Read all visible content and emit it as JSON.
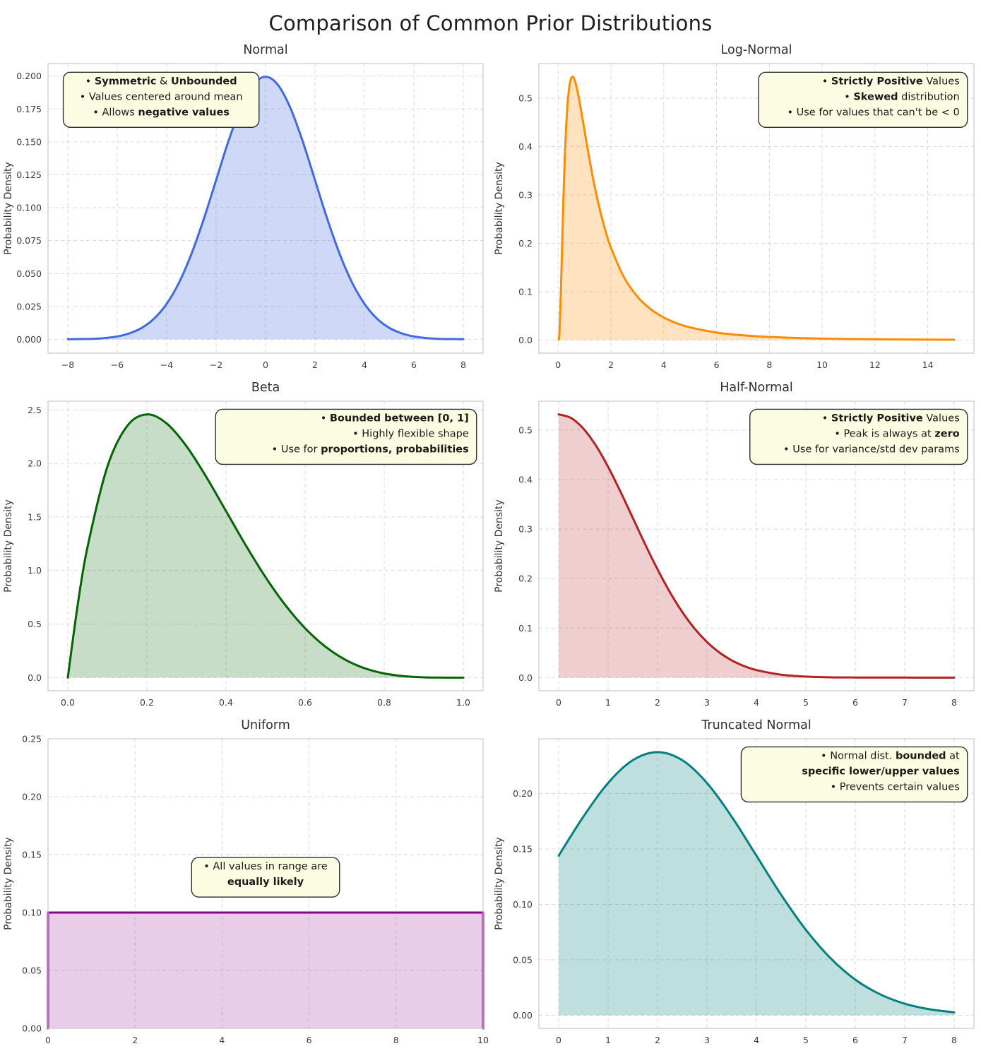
{
  "page_title": "Comparison of Common Prior Distributions",
  "ylabel": "Probability Density",
  "annotation_box_color": "#fcfce3",
  "chart_data": [
    {
      "id": "normal",
      "type": "area",
      "title": "Normal",
      "ylabel": "Probability Density",
      "line_color": "#4169E1",
      "fill_color": "rgba(65,105,225,0.25)",
      "smooth": true,
      "grid": true,
      "xlim": [
        -8.8,
        8.8
      ],
      "ylim": [
        -0.0105,
        0.2095
      ],
      "x_ticks": [
        {
          "v": -8,
          "t": "−8"
        },
        {
          "v": -6,
          "t": "−6"
        },
        {
          "v": -4,
          "t": "−4"
        },
        {
          "v": -2,
          "t": "−2"
        },
        {
          "v": 0,
          "t": "0"
        },
        {
          "v": 2,
          "t": "2"
        },
        {
          "v": 4,
          "t": "4"
        },
        {
          "v": 6,
          "t": "6"
        },
        {
          "v": 8,
          "t": "8"
        }
      ],
      "y_ticks": [
        {
          "v": 0,
          "t": "0.000"
        },
        {
          "v": 0.025,
          "t": "0.025"
        },
        {
          "v": 0.05,
          "t": "0.050"
        },
        {
          "v": 0.075,
          "t": "0.075"
        },
        {
          "v": 0.1,
          "t": "0.100"
        },
        {
          "v": 0.125,
          "t": "0.125"
        },
        {
          "v": 0.15,
          "t": "0.150"
        },
        {
          "v": 0.175,
          "t": "0.175"
        },
        {
          "v": 0.2,
          "t": "0.200"
        }
      ],
      "x": [
        -8,
        -7.5,
        -7,
        -6.5,
        -6,
        -5.5,
        -5,
        -4.5,
        -4,
        -3.5,
        -3,
        -2.5,
        -2,
        -1.5,
        -1,
        -0.5,
        0,
        0.5,
        1,
        1.5,
        2,
        2.5,
        3,
        3.5,
        4,
        4.5,
        5,
        5.5,
        6,
        6.5,
        7,
        7.5,
        8
      ],
      "y": [
        0.0001,
        0.0002,
        0.0004,
        0.001,
        0.0022,
        0.0046,
        0.0088,
        0.0159,
        0.027,
        0.0431,
        0.0648,
        0.0913,
        0.121,
        0.1506,
        0.176,
        0.1933,
        0.1995,
        0.1933,
        0.176,
        0.1506,
        0.121,
        0.0913,
        0.0648,
        0.0431,
        0.027,
        0.0159,
        0.0088,
        0.0046,
        0.0022,
        0.001,
        0.0004,
        0.0002,
        0.0001
      ],
      "annotation": {
        "align": "center",
        "pos": {
          "side": "left",
          "x": 0.035,
          "y": 0.03,
          "w": 0.45
        },
        "lines": [
          [
            {
              "t": "• ",
              "b": false
            },
            {
              "t": "Symmetric",
              "b": true
            },
            {
              "t": " & ",
              "b": false
            },
            {
              "t": "Unbounded",
              "b": true
            }
          ],
          [
            {
              "t": "• Values centered around mean",
              "b": false
            }
          ],
          [
            {
              "t": "• Allows ",
              "b": false
            },
            {
              "t": "negative values",
              "b": true
            }
          ]
        ]
      }
    },
    {
      "id": "log-normal",
      "type": "area",
      "title": "Log-Normal",
      "ylabel": "Probability Density",
      "line_color": "#FF8C00",
      "fill_color": "rgba(255,140,0,0.25)",
      "smooth": true,
      "grid": true,
      "xlim": [
        -0.73,
        15.75
      ],
      "ylim": [
        -0.0272,
        0.5715
      ],
      "x_ticks": [
        {
          "v": 0,
          "t": "0"
        },
        {
          "v": 2,
          "t": "2"
        },
        {
          "v": 4,
          "t": "4"
        },
        {
          "v": 6,
          "t": "6"
        },
        {
          "v": 8,
          "t": "8"
        },
        {
          "v": 10,
          "t": "10"
        },
        {
          "v": 12,
          "t": "12"
        },
        {
          "v": 14,
          "t": "14"
        }
      ],
      "y_ticks": [
        {
          "v": 0,
          "t": "0.0"
        },
        {
          "v": 0.1,
          "t": "0.1"
        },
        {
          "v": 0.2,
          "t": "0.2"
        },
        {
          "v": 0.3,
          "t": "0.3"
        },
        {
          "v": 0.4,
          "t": "0.4"
        },
        {
          "v": 0.5,
          "t": "0.5"
        }
      ],
      "x": [
        0.02,
        0.05,
        0.1,
        0.15,
        0.2,
        0.25,
        0.3,
        0.35,
        0.4,
        0.45,
        0.5,
        0.55,
        0.6,
        0.7,
        0.8,
        0.9,
        1,
        1.2,
        1.4,
        1.6,
        1.8,
        2,
        2.5,
        3,
        3.5,
        4,
        4.5,
        5,
        6,
        7,
        8,
        9,
        10,
        11,
        12,
        13,
        14,
        15
      ],
      "y": [
        0.0007,
        0.0163,
        0.0929,
        0.1956,
        0.2941,
        0.3752,
        0.4377,
        0.483,
        0.5136,
        0.5324,
        0.5419,
        0.5442,
        0.5409,
        0.523,
        0.4961,
        0.465,
        0.4325,
        0.3693,
        0.313,
        0.2649,
        0.2245,
        0.1908,
        0.1292,
        0.0898,
        0.0639,
        0.0465,
        0.0345,
        0.026,
        0.0155,
        0.0096,
        0.0063,
        0.0042,
        0.0029,
        0.002,
        0.0015,
        0.0011,
        0.0008,
        0.0006
      ],
      "annotation": {
        "align": "right",
        "pos": {
          "side": "right",
          "x": 0.985,
          "y": 0.03,
          "w": 0.48
        },
        "lines": [
          [
            {
              "t": "• ",
              "b": false
            },
            {
              "t": "Strictly Positive",
              "b": true
            },
            {
              "t": " Values",
              "b": false
            }
          ],
          [
            {
              "t": "• ",
              "b": false
            },
            {
              "t": "Skewed",
              "b": true
            },
            {
              "t": " distribution",
              "b": false
            }
          ],
          [
            {
              "t": "• Use for values that can't be < 0",
              "b": false
            }
          ]
        ]
      }
    },
    {
      "id": "beta",
      "type": "area",
      "title": "Beta",
      "ylabel": "Probability Density",
      "line_color": "#006400",
      "fill_color": "rgba(0,100,0,0.22)",
      "smooth": true,
      "grid": true,
      "xlim": [
        -0.05,
        1.05
      ],
      "ylim": [
        -0.123,
        2.581
      ],
      "x_ticks": [
        {
          "v": 0,
          "t": "0.0"
        },
        {
          "v": 0.2,
          "t": "0.2"
        },
        {
          "v": 0.4,
          "t": "0.4"
        },
        {
          "v": 0.6,
          "t": "0.6"
        },
        {
          "v": 0.8,
          "t": "0.8"
        },
        {
          "v": 1,
          "t": "1.0"
        }
      ],
      "y_ticks": [
        {
          "v": 0,
          "t": "0.0"
        },
        {
          "v": 0.5,
          "t": "0.5"
        },
        {
          "v": 1,
          "t": "1.0"
        },
        {
          "v": 1.5,
          "t": "1.5"
        },
        {
          "v": 2,
          "t": "2.0"
        },
        {
          "v": 2.5,
          "t": "2.5"
        }
      ],
      "x": [
        0,
        0.025,
        0.05,
        0.1,
        0.15,
        0.2,
        0.25,
        0.3,
        0.35,
        0.4,
        0.45,
        0.5,
        0.55,
        0.6,
        0.65,
        0.7,
        0.75,
        0.8,
        0.85,
        0.9,
        0.95,
        1
      ],
      "y": [
        0,
        0.6778,
        1.2218,
        1.9683,
        2.3491,
        2.4576,
        2.373,
        2.1609,
        1.8744,
        1.5552,
        1.2353,
        0.9375,
        0.6768,
        0.4608,
        0.2928,
        0.1701,
        0.0879,
        0.0384,
        0.0129,
        0.0027,
        0.0002,
        0
      ],
      "annotation": {
        "align": "right",
        "pos": {
          "side": "right",
          "x": 0.985,
          "y": 0.028,
          "w": 0.6
        },
        "lines": [
          [
            {
              "t": "• ",
              "b": false
            },
            {
              "t": "Bounded between [0, 1]",
              "b": true
            }
          ],
          [
            {
              "t": "• Highly flexible shape",
              "b": false
            }
          ],
          [
            {
              "t": "• Use for ",
              "b": false
            },
            {
              "t": "proportions,  probabilities",
              "b": true
            }
          ]
        ]
      }
    },
    {
      "id": "half-normal",
      "type": "area",
      "title": "Half-Normal",
      "ylabel": "Probability Density",
      "line_color": "#B22222",
      "fill_color": "rgba(178,34,34,0.22)",
      "smooth": true,
      "grid": true,
      "xlim": [
        -0.4,
        8.4
      ],
      "ylim": [
        -0.0266,
        0.5585
      ],
      "x_ticks": [
        {
          "v": 0,
          "t": "0"
        },
        {
          "v": 1,
          "t": "1"
        },
        {
          "v": 2,
          "t": "2"
        },
        {
          "v": 3,
          "t": "3"
        },
        {
          "v": 4,
          "t": "4"
        },
        {
          "v": 5,
          "t": "5"
        },
        {
          "v": 6,
          "t": "6"
        },
        {
          "v": 7,
          "t": "7"
        },
        {
          "v": 8,
          "t": "8"
        }
      ],
      "y_ticks": [
        {
          "v": 0,
          "t": "0.0"
        },
        {
          "v": 0.1,
          "t": "0.1"
        },
        {
          "v": 0.2,
          "t": "0.2"
        },
        {
          "v": 0.3,
          "t": "0.3"
        },
        {
          "v": 0.4,
          "t": "0.4"
        },
        {
          "v": 0.5,
          "t": "0.5"
        }
      ],
      "x": [
        0,
        0.25,
        0.5,
        0.75,
        1,
        1.25,
        1.5,
        1.75,
        2,
        2.25,
        2.5,
        2.75,
        3,
        3.25,
        3.5,
        3.75,
        4,
        4.5,
        5,
        5.5,
        6,
        6.5,
        7,
        7.5,
        8
      ],
      "y": [
        0.5319,
        0.5246,
        0.5031,
        0.4694,
        0.4259,
        0.3758,
        0.3226,
        0.2693,
        0.2187,
        0.1727,
        0.1327,
        0.0991,
        0.072,
        0.0508,
        0.0349,
        0.0234,
        0.0152,
        0.0059,
        0.0021,
        0.0006,
        0.0002,
        0.0001,
        0.0001,
        0,
        0
      ],
      "annotation": {
        "align": "right",
        "pos": {
          "side": "right",
          "x": 0.985,
          "y": 0.028,
          "w": 0.5
        },
        "lines": [
          [
            {
              "t": "• ",
              "b": false
            },
            {
              "t": "Strictly Positive",
              "b": true
            },
            {
              "t": " Values",
              "b": false
            }
          ],
          [
            {
              "t": "• Peak is always at ",
              "b": false
            },
            {
              "t": "zero",
              "b": true
            }
          ],
          [
            {
              "t": "• Use for variance/std dev params",
              "b": false
            }
          ]
        ]
      }
    },
    {
      "id": "uniform",
      "type": "area",
      "title": "Uniform",
      "ylabel": "Probability Density",
      "line_color": "#8B008B",
      "fill_color": "rgba(139,0,139,0.2)",
      "smooth": false,
      "grid": true,
      "xlim": [
        0,
        10
      ],
      "ylim": [
        0,
        0.25
      ],
      "x_ticks": [
        {
          "v": 0,
          "t": "0"
        },
        {
          "v": 2,
          "t": "2"
        },
        {
          "v": 4,
          "t": "4"
        },
        {
          "v": 6,
          "t": "6"
        },
        {
          "v": 8,
          "t": "8"
        },
        {
          "v": 10,
          "t": "10"
        }
      ],
      "y_ticks": [
        {
          "v": 0,
          "t": "0.00"
        },
        {
          "v": 0.05,
          "t": "0.05"
        },
        {
          "v": 0.1,
          "t": "0.10"
        },
        {
          "v": 0.15,
          "t": "0.15"
        },
        {
          "v": 0.2,
          "t": "0.20"
        },
        {
          "v": 0.25,
          "t": "0.25"
        }
      ],
      "x": [
        0,
        0,
        10,
        10
      ],
      "y": [
        0,
        0.1,
        0.1,
        0
      ],
      "annotation": {
        "align": "center",
        "pos": {
          "side": "center",
          "x": 0.5,
          "y": 0.41,
          "w": 0.34
        },
        "lines": [
          [
            {
              "t": "• All values in range are",
              "b": false
            }
          ],
          [
            {
              "t": "equally likely",
              "b": true
            }
          ]
        ]
      }
    },
    {
      "id": "truncated-normal",
      "type": "area",
      "title": "Truncated Normal",
      "ylabel": "Probability Density",
      "line_color": "#008080",
      "fill_color": "rgba(0,128,128,0.25)",
      "smooth": true,
      "grid": true,
      "xlim": [
        -0.4,
        8.4
      ],
      "ylim": [
        -0.0119,
        0.2495
      ],
      "x_ticks": [
        {
          "v": 0,
          "t": "0"
        },
        {
          "v": 1,
          "t": "1"
        },
        {
          "v": 2,
          "t": "2"
        },
        {
          "v": 3,
          "t": "3"
        },
        {
          "v": 4,
          "t": "4"
        },
        {
          "v": 5,
          "t": "5"
        },
        {
          "v": 6,
          "t": "6"
        },
        {
          "v": 7,
          "t": "7"
        },
        {
          "v": 8,
          "t": "8"
        }
      ],
      "y_ticks": [
        {
          "v": 0,
          "t": "0.00"
        },
        {
          "v": 0.05,
          "t": "0.05"
        },
        {
          "v": 0.1,
          "t": "0.10"
        },
        {
          "v": 0.15,
          "t": "0.15"
        },
        {
          "v": 0.2,
          "t": "0.20"
        }
      ],
      "x": [
        0,
        0.5,
        1,
        1.5,
        2,
        2.5,
        3,
        3.5,
        4,
        4.5,
        5,
        5.5,
        6,
        6.5,
        7,
        7.5,
        8
      ],
      "y": [
        0.144,
        0.1792,
        0.2096,
        0.2302,
        0.2375,
        0.2302,
        0.2096,
        0.1792,
        0.144,
        0.1087,
        0.0771,
        0.0514,
        0.0321,
        0.0189,
        0.0104,
        0.0054,
        0.0026
      ],
      "annotation": {
        "align": "right",
        "pos": {
          "side": "right",
          "x": 0.985,
          "y": 0.028,
          "w": 0.52
        },
        "lines": [
          [
            {
              "t": "• Normal dist. ",
              "b": false
            },
            {
              "t": "bounded",
              "b": true
            },
            {
              "t": " at",
              "b": false
            }
          ],
          [
            {
              "t": "specific lower/upper values",
              "b": true
            }
          ],
          [
            {
              "t": "• Prevents certain values",
              "b": false
            }
          ]
        ]
      }
    }
  ]
}
